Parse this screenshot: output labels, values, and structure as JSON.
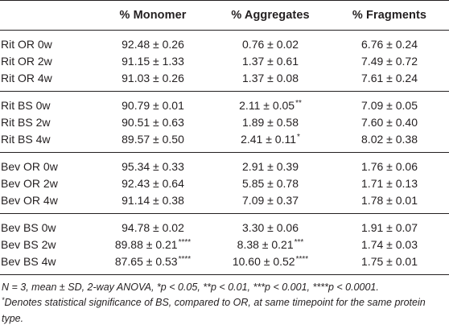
{
  "table": {
    "headers": [
      "",
      "% Monomer",
      "% Aggregates",
      "% Fragments"
    ],
    "groups": [
      {
        "rows": [
          {
            "label": "Rit OR 0w",
            "monomer": "92.48 ± 0.26",
            "monomer_sig": "",
            "aggregates": "0.76 ± 0.02",
            "aggregates_sig": "",
            "fragments": "6.76 ± 0.24",
            "fragments_sig": ""
          },
          {
            "label": "Rit OR 2w",
            "monomer": "91.15 ± 1.33",
            "monomer_sig": "",
            "aggregates": "1.37 ± 0.61",
            "aggregates_sig": "",
            "fragments": "7.49 ± 0.72",
            "fragments_sig": ""
          },
          {
            "label": "Rit OR 4w",
            "monomer": "91.03 ± 0.26",
            "monomer_sig": "",
            "aggregates": "1.37 ± 0.08",
            "aggregates_sig": "",
            "fragments": "7.61 ± 0.24",
            "fragments_sig": ""
          }
        ]
      },
      {
        "rows": [
          {
            "label": "Rit BS 0w",
            "monomer": "90.79 ± 0.01",
            "monomer_sig": "",
            "aggregates": "2.11 ± 0.05",
            "aggregates_sig": "**",
            "fragments": "7.09 ± 0.05",
            "fragments_sig": ""
          },
          {
            "label": "Rit BS 2w",
            "monomer": "90.51 ± 0.63",
            "monomer_sig": "",
            "aggregates": "1.89 ± 0.58",
            "aggregates_sig": "",
            "fragments": "7.60 ± 0.40",
            "fragments_sig": ""
          },
          {
            "label": "Rit BS 4w",
            "monomer": "89.57 ± 0.50",
            "monomer_sig": "",
            "aggregates": "2.41 ± 0.11",
            "aggregates_sig": "*",
            "fragments": "8.02 ± 0.38",
            "fragments_sig": ""
          }
        ]
      },
      {
        "rows": [
          {
            "label": "Bev OR 0w",
            "monomer": "95.34 ± 0.33",
            "monomer_sig": "",
            "aggregates": "2.91 ± 0.39",
            "aggregates_sig": "",
            "fragments": "1.76 ± 0.06",
            "fragments_sig": ""
          },
          {
            "label": "Bev OR 2w",
            "monomer": "92.43 ± 0.64",
            "monomer_sig": "",
            "aggregates": "5.85 ± 0.78",
            "aggregates_sig": "",
            "fragments": "1.71 ± 0.13",
            "fragments_sig": ""
          },
          {
            "label": "Bev OR 4w",
            "monomer": "91.14 ± 0.38",
            "monomer_sig": "",
            "aggregates": "7.09 ± 0.37",
            "aggregates_sig": "",
            "fragments": "1.78 ± 0.01",
            "fragments_sig": ""
          }
        ]
      },
      {
        "rows": [
          {
            "label": "Bev BS 0w",
            "monomer": "94.78 ± 0.02",
            "monomer_sig": "",
            "aggregates": "3.30 ± 0.06",
            "aggregates_sig": "",
            "fragments": "1.91 ± 0.07",
            "fragments_sig": ""
          },
          {
            "label": "Bev BS 2w",
            "monomer": "89.88 ± 0.21",
            "monomer_sig": "****",
            "aggregates": "8.38 ± 0.21",
            "aggregates_sig": "***",
            "fragments": "1.74 ± 0.03",
            "fragments_sig": ""
          },
          {
            "label": "Bev BS 4w",
            "monomer": "87.65 ± 0.53",
            "monomer_sig": "****",
            "aggregates": "10.60 ± 0.52",
            "aggregates_sig": "****",
            "fragments": "1.75 ± 0.01",
            "fragments_sig": ""
          }
        ]
      }
    ]
  },
  "footnote": {
    "line1": "N = 3, mean ± SD, 2-way ANOVA, *p < 0.05, **p < 0.01, ***p < 0.001, ****p < 0.0001.",
    "line2_star": "*",
    "line2": "Denotes statistical significance of BS, compared to OR, at same timepoint for the same protein type."
  }
}
